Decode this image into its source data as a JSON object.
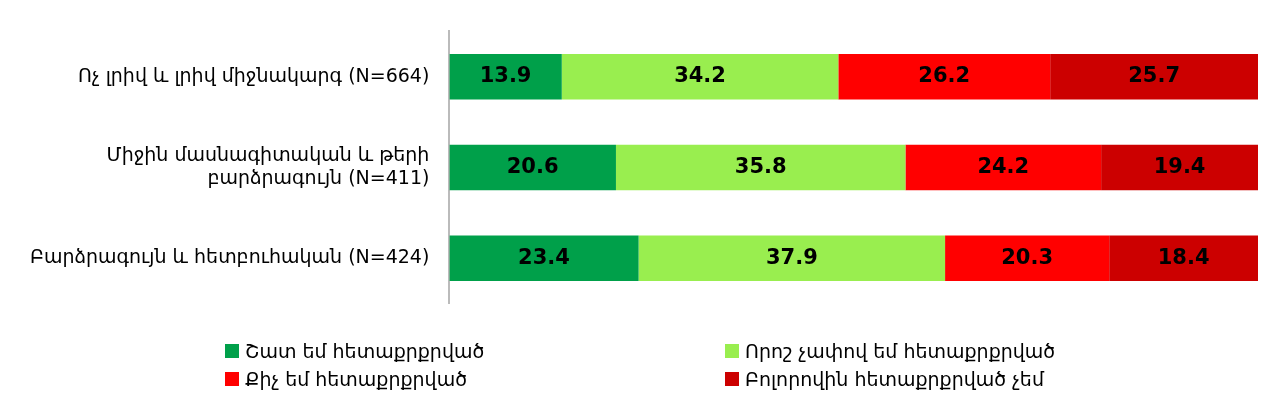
{
  "chart_data": {
    "type": "bar",
    "orientation": "horizontal",
    "stacked": true,
    "data_labels": true,
    "legend": "bottom",
    "grid": false,
    "tick_labels": "y",
    "xlim": [
      0,
      100
    ],
    "categories": [
      "Ոչ լրիվ և լրիվ միջնակարգ (N=664)",
      "Միջին մասնագիտական և թերի բարձրագույն (N=411)",
      "Բարձրագույն և հետբուհական (N=424)"
    ],
    "series": [
      {
        "name": "Շատ եմ հետաքրքրված",
        "color": "#00a04a",
        "values": [
          13.9,
          20.6,
          23.4
        ]
      },
      {
        "name": "Որոշ չափով եմ հետաքրքրված",
        "color": "#99ee4f",
        "values": [
          34.2,
          35.8,
          37.9
        ]
      },
      {
        "name": "Քիչ եմ հետաքրքրված",
        "color": "#ff0000",
        "values": [
          26.2,
          24.2,
          20.3
        ]
      },
      {
        "name": "Բոլորովին հետաքրքրված չեմ",
        "color": "#cc0000",
        "values": [
          25.7,
          19.4,
          18.4
        ]
      }
    ]
  }
}
